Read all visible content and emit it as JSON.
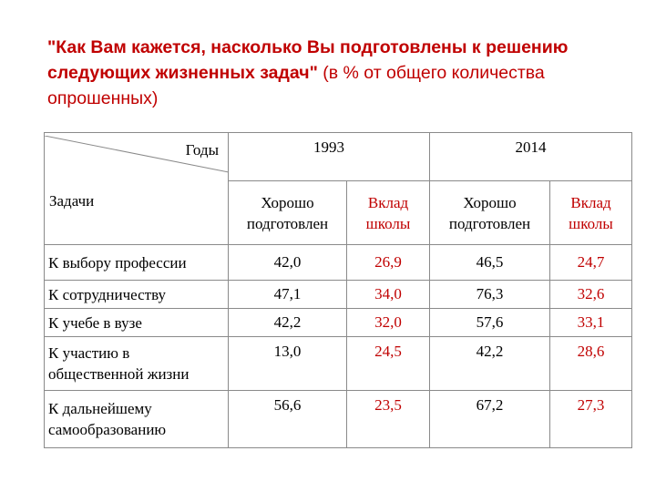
{
  "title": {
    "bold_part": "\"Как Вам кажется, насколько Вы подготовлены к решению следующих жизненных задач\"",
    "normal_part": " (в % от общего количества опрошенных)"
  },
  "table": {
    "corner_top": "Годы",
    "corner_bottom": "Задачи",
    "years": [
      "1993",
      "2014"
    ],
    "subheaders": [
      {
        "line1": "Хорошо",
        "line2": "подготовлен"
      },
      {
        "line1": "Вклад",
        "line2": "школы"
      },
      {
        "line1": "Хорошо",
        "line2": "подготовлен"
      },
      {
        "line1": "Вклад",
        "line2": "школы"
      }
    ],
    "rows": [
      {
        "task1": "К выбору профессии",
        "task2": "",
        "v": [
          "42,0",
          "26,9",
          "46,5",
          "24,7"
        ]
      },
      {
        "task1": "К сотрудничеству",
        "task2": "",
        "v": [
          "47,1",
          "34,0",
          "76,3",
          "32,6"
        ]
      },
      {
        "task1": "К учебе в вузе",
        "task2": "",
        "v": [
          "42,2",
          "32,0",
          "57,6",
          "33,1"
        ]
      },
      {
        "task1": "К участию в",
        "task2": "общественной жизни",
        "v": [
          "13,0",
          "24,5",
          "42,2",
          "28,6"
        ]
      },
      {
        "task1": "К дальнейшему",
        "task2": "самообразованию",
        "v": [
          "56,6",
          "23,5",
          "67,2",
          "27,3"
        ]
      }
    ]
  }
}
